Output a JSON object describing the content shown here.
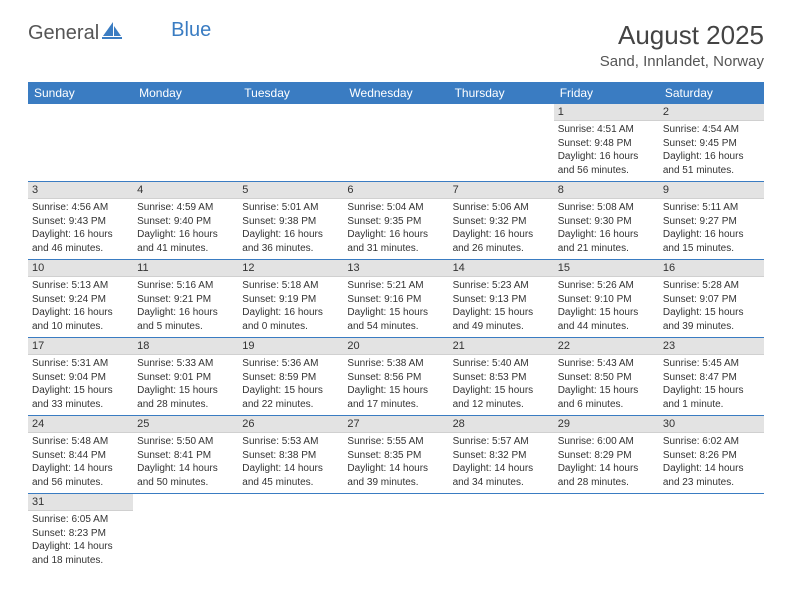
{
  "logo": {
    "text_a": "General",
    "text_b": "Blue"
  },
  "title": "August 2025",
  "location": "Sand, Innlandet, Norway",
  "colors": {
    "header_bg": "#3a7cc2",
    "header_text": "#ffffff",
    "daynum_bg": "#e3e3e3",
    "row_border": "#3a7cc2",
    "page_bg": "#ffffff",
    "text": "#333333"
  },
  "weekdays": [
    "Sunday",
    "Monday",
    "Tuesday",
    "Wednesday",
    "Thursday",
    "Friday",
    "Saturday"
  ],
  "weeks": [
    [
      null,
      null,
      null,
      null,
      null,
      {
        "n": "1",
        "sr": "4:51 AM",
        "ss": "9:48 PM",
        "dl": "16 hours and 56 minutes."
      },
      {
        "n": "2",
        "sr": "4:54 AM",
        "ss": "9:45 PM",
        "dl": "16 hours and 51 minutes."
      }
    ],
    [
      {
        "n": "3",
        "sr": "4:56 AM",
        "ss": "9:43 PM",
        "dl": "16 hours and 46 minutes."
      },
      {
        "n": "4",
        "sr": "4:59 AM",
        "ss": "9:40 PM",
        "dl": "16 hours and 41 minutes."
      },
      {
        "n": "5",
        "sr": "5:01 AM",
        "ss": "9:38 PM",
        "dl": "16 hours and 36 minutes."
      },
      {
        "n": "6",
        "sr": "5:04 AM",
        "ss": "9:35 PM",
        "dl": "16 hours and 31 minutes."
      },
      {
        "n": "7",
        "sr": "5:06 AM",
        "ss": "9:32 PM",
        "dl": "16 hours and 26 minutes."
      },
      {
        "n": "8",
        "sr": "5:08 AM",
        "ss": "9:30 PM",
        "dl": "16 hours and 21 minutes."
      },
      {
        "n": "9",
        "sr": "5:11 AM",
        "ss": "9:27 PM",
        "dl": "16 hours and 15 minutes."
      }
    ],
    [
      {
        "n": "10",
        "sr": "5:13 AM",
        "ss": "9:24 PM",
        "dl": "16 hours and 10 minutes."
      },
      {
        "n": "11",
        "sr": "5:16 AM",
        "ss": "9:21 PM",
        "dl": "16 hours and 5 minutes."
      },
      {
        "n": "12",
        "sr": "5:18 AM",
        "ss": "9:19 PM",
        "dl": "16 hours and 0 minutes."
      },
      {
        "n": "13",
        "sr": "5:21 AM",
        "ss": "9:16 PM",
        "dl": "15 hours and 54 minutes."
      },
      {
        "n": "14",
        "sr": "5:23 AM",
        "ss": "9:13 PM",
        "dl": "15 hours and 49 minutes."
      },
      {
        "n": "15",
        "sr": "5:26 AM",
        "ss": "9:10 PM",
        "dl": "15 hours and 44 minutes."
      },
      {
        "n": "16",
        "sr": "5:28 AM",
        "ss": "9:07 PM",
        "dl": "15 hours and 39 minutes."
      }
    ],
    [
      {
        "n": "17",
        "sr": "5:31 AM",
        "ss": "9:04 PM",
        "dl": "15 hours and 33 minutes."
      },
      {
        "n": "18",
        "sr": "5:33 AM",
        "ss": "9:01 PM",
        "dl": "15 hours and 28 minutes."
      },
      {
        "n": "19",
        "sr": "5:36 AM",
        "ss": "8:59 PM",
        "dl": "15 hours and 22 minutes."
      },
      {
        "n": "20",
        "sr": "5:38 AM",
        "ss": "8:56 PM",
        "dl": "15 hours and 17 minutes."
      },
      {
        "n": "21",
        "sr": "5:40 AM",
        "ss": "8:53 PM",
        "dl": "15 hours and 12 minutes."
      },
      {
        "n": "22",
        "sr": "5:43 AM",
        "ss": "8:50 PM",
        "dl": "15 hours and 6 minutes."
      },
      {
        "n": "23",
        "sr": "5:45 AM",
        "ss": "8:47 PM",
        "dl": "15 hours and 1 minute."
      }
    ],
    [
      {
        "n": "24",
        "sr": "5:48 AM",
        "ss": "8:44 PM",
        "dl": "14 hours and 56 minutes."
      },
      {
        "n": "25",
        "sr": "5:50 AM",
        "ss": "8:41 PM",
        "dl": "14 hours and 50 minutes."
      },
      {
        "n": "26",
        "sr": "5:53 AM",
        "ss": "8:38 PM",
        "dl": "14 hours and 45 minutes."
      },
      {
        "n": "27",
        "sr": "5:55 AM",
        "ss": "8:35 PM",
        "dl": "14 hours and 39 minutes."
      },
      {
        "n": "28",
        "sr": "5:57 AM",
        "ss": "8:32 PM",
        "dl": "14 hours and 34 minutes."
      },
      {
        "n": "29",
        "sr": "6:00 AM",
        "ss": "8:29 PM",
        "dl": "14 hours and 28 minutes."
      },
      {
        "n": "30",
        "sr": "6:02 AM",
        "ss": "8:26 PM",
        "dl": "14 hours and 23 minutes."
      }
    ],
    [
      {
        "n": "31",
        "sr": "6:05 AM",
        "ss": "8:23 PM",
        "dl": "14 hours and 18 minutes."
      },
      null,
      null,
      null,
      null,
      null,
      null
    ]
  ],
  "labels": {
    "sunrise": "Sunrise: ",
    "sunset": "Sunset: ",
    "daylight": "Daylight: "
  }
}
